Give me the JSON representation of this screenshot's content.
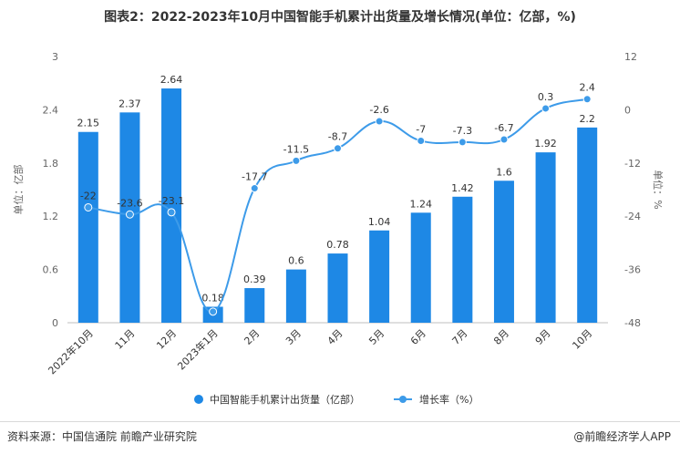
{
  "title": "图表2：2022-2023年10月中国智能手机累计出货量及增长情况(单位：亿部，%)",
  "source": "资料来源：中国信通院 前瞻产业研究院",
  "brand": "@前瞻经济学人APP",
  "colors": {
    "bar": "#1e88e5",
    "line": "#3d9be9",
    "axis": "#999999",
    "text": "#333333"
  },
  "chart_data": {
    "type": "bar+line",
    "categories": [
      "2022年10月",
      "11月",
      "12月",
      "2023年1月",
      "2月",
      "3月",
      "4月",
      "5月",
      "6月",
      "7月",
      "8月",
      "9月",
      "10月"
    ],
    "series": [
      {
        "name": "中国智能手机累计出货量（亿部）",
        "type": "bar",
        "axis": "left",
        "values": [
          2.15,
          2.37,
          2.64,
          0.18,
          0.39,
          0.6,
          0.78,
          1.04,
          1.24,
          1.42,
          1.6,
          1.92,
          2.2
        ]
      },
      {
        "name": "增长率（%）",
        "type": "line",
        "axis": "right",
        "values": [
          -22,
          -23.6,
          -23.1,
          -45.5,
          -17.7,
          -11.5,
          -8.7,
          -2.6,
          -7,
          -7.3,
          -6.7,
          0.3,
          2.4
        ]
      }
    ],
    "bar_labels": [
      "2.15",
      "2.37",
      "2.64",
      "0.18",
      "0.39",
      "0.6",
      "0.78",
      "1.04",
      "1.24",
      "1.42",
      "1.6",
      "1.92",
      "2.2"
    ],
    "line_labels": [
      "-22",
      "-23.6",
      "-23.1",
      "",
      "-17.7",
      "-11.5",
      "-8.7",
      "-2.6",
      "-7",
      "-7.3",
      "-6.7",
      "0.3",
      "2.4"
    ],
    "ylabel_left": "单位：亿部",
    "ylabel_right": "单位：%",
    "ylim_left": [
      0,
      3
    ],
    "yticks_left": [
      "0",
      "0.6",
      "1.2",
      "1.8",
      "2.4",
      "3"
    ],
    "ylim_right": [
      -48,
      12
    ],
    "yticks_right": [
      "-48",
      "-36",
      "-24",
      "-12",
      "0",
      "12"
    ],
    "legend_position": "bottom"
  }
}
